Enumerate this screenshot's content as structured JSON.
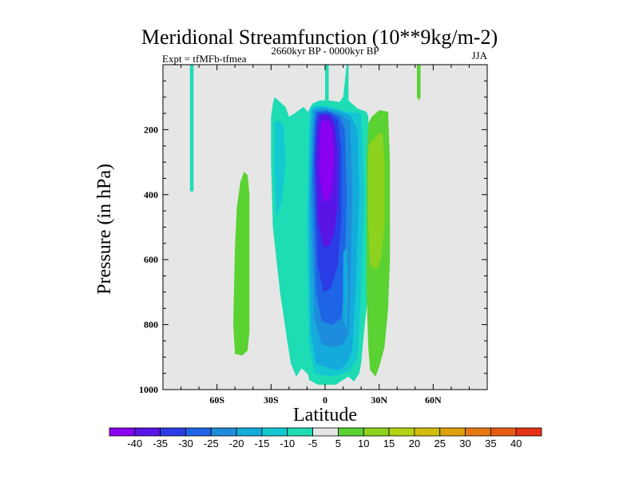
{
  "chart_data": {
    "type": "contour",
    "title": "Meridional Streamfunction (10**9kg/m-2)",
    "subtitle": "2660kyr BP - 0000kyr BP",
    "experiment_label": "Expt = tfMFb-tfmea",
    "season": "JJA",
    "xlabel": "Latitude",
    "ylabel": "Pressure (in hPa)",
    "xlim": [
      -90,
      90
    ],
    "ylim": [
      1000,
      0
    ],
    "x_ticks": [
      {
        "value": -60,
        "label": "60S"
      },
      {
        "value": -30,
        "label": "30S"
      },
      {
        "value": 0,
        "label": "0"
      },
      {
        "value": 30,
        "label": "30N"
      },
      {
        "value": 60,
        "label": "60N"
      }
    ],
    "y_ticks": [
      {
        "value": 200,
        "label": "200"
      },
      {
        "value": 400,
        "label": "400"
      },
      {
        "value": 600,
        "label": "600"
      },
      {
        "value": 800,
        "label": "800"
      },
      {
        "value": 1000,
        "label": "1000"
      }
    ],
    "background_color": "#e6e6e6",
    "colorbar": {
      "labels": [
        "-40",
        "-35",
        "-30",
        "-25",
        "-20",
        "-15",
        "-10",
        "-5",
        "5",
        "10",
        "15",
        "20",
        "25",
        "30",
        "35",
        "40"
      ],
      "colors": [
        "#8a00f0",
        "#5a14e6",
        "#2a3ce6",
        "#1e64e6",
        "#1e8cdc",
        "#14aadc",
        "#14c8d2",
        "#1edcb4",
        "#e6e6e6",
        "#5ad232",
        "#8cd21e",
        "#b4d214",
        "#d2be0a",
        "#dca00a",
        "#e67814",
        "#e65a14",
        "#e63214"
      ]
    },
    "regions": [
      {
        "value": -5,
        "color": "#1edcb4",
        "points": [
          [
            -75,
            0
          ],
          [
            -73,
            0
          ],
          [
            -73,
            390
          ],
          [
            -75,
            390
          ]
        ]
      },
      {
        "value": 5,
        "color": "#5ad232",
        "points": [
          [
            -50,
            560
          ],
          [
            -49,
            440
          ],
          [
            -47,
            360
          ],
          [
            -45,
            330
          ],
          [
            -43,
            340
          ],
          [
            -42,
            400
          ],
          [
            -42,
            820
          ],
          [
            -43,
            880
          ],
          [
            -46,
            895
          ],
          [
            -50,
            890
          ],
          [
            -51,
            800
          ]
        ]
      },
      {
        "value": -5,
        "color": "#1edcb4",
        "points": [
          [
            -29,
            120
          ],
          [
            -28,
            100
          ],
          [
            -26,
            110
          ],
          [
            -22,
            130
          ],
          [
            -20,
            160
          ],
          [
            -17,
            150
          ],
          [
            -12,
            130
          ],
          [
            -8,
            155
          ],
          [
            -7,
            400
          ],
          [
            -6,
            850
          ],
          [
            -6,
            950
          ],
          [
            -8,
            970
          ],
          [
            -10,
            950
          ],
          [
            -13,
            935
          ],
          [
            -16,
            960
          ],
          [
            -19,
            920
          ],
          [
            -21,
            850
          ],
          [
            -25,
            700
          ],
          [
            -29,
            500
          ],
          [
            -30,
            300
          ],
          [
            -30,
            160
          ]
        ]
      },
      {
        "value": -10,
        "color": "#14c8d2",
        "points": [
          [
            -28,
            180
          ],
          [
            -26,
            170
          ],
          [
            -23,
            190
          ],
          [
            -22,
            300
          ],
          [
            -24,
            420
          ],
          [
            -27,
            470
          ],
          [
            -28,
            350
          ]
        ]
      },
      {
        "value": -5,
        "color": "#1edcb4",
        "points": [
          [
            0,
            0
          ],
          [
            2,
            0
          ],
          [
            2,
            110
          ],
          [
            8,
            115
          ],
          [
            10,
            100
          ],
          [
            12,
            0
          ],
          [
            13,
            0
          ],
          [
            13,
            110
          ],
          [
            18,
            135
          ],
          [
            23,
            145
          ],
          [
            24,
            160
          ],
          [
            24,
            700
          ],
          [
            22,
            800
          ],
          [
            20,
            920
          ],
          [
            19,
            950
          ],
          [
            16,
            975
          ],
          [
            13,
            960
          ],
          [
            10,
            970
          ],
          [
            6,
            985
          ],
          [
            -4,
            985
          ],
          [
            -9,
            970
          ],
          [
            -10,
            900
          ],
          [
            -11,
            500
          ],
          [
            -10,
            150
          ],
          [
            -7,
            120
          ],
          [
            -3,
            110
          ],
          [
            0,
            110
          ]
        ]
      },
      {
        "value": -10,
        "color": "#14c8d2",
        "points": [
          [
            -8,
            130
          ],
          [
            -4,
            125
          ],
          [
            4,
            130
          ],
          [
            12,
            145
          ],
          [
            20,
            150
          ],
          [
            22,
            400
          ],
          [
            20,
            700
          ],
          [
            18,
            900
          ],
          [
            14,
            940
          ],
          [
            10,
            950
          ],
          [
            4,
            960
          ],
          [
            -6,
            950
          ],
          [
            -9,
            850
          ],
          [
            -10,
            500
          ],
          [
            -9,
            200
          ]
        ]
      },
      {
        "value": -15,
        "color": "#14aadc",
        "points": [
          [
            -7,
            135
          ],
          [
            -2,
            130
          ],
          [
            6,
            140
          ],
          [
            14,
            155
          ],
          [
            18,
            200
          ],
          [
            19,
            400
          ],
          [
            17,
            700
          ],
          [
            15,
            880
          ],
          [
            12,
            920
          ],
          [
            8,
            940
          ],
          [
            2,
            935
          ],
          [
            -5,
            920
          ],
          [
            -8,
            820
          ],
          [
            -9,
            450
          ],
          [
            -8,
            180
          ]
        ]
      },
      {
        "value": -20,
        "color": "#1e8cdc",
        "points": [
          [
            -6,
            140
          ],
          [
            0,
            137
          ],
          [
            8,
            150
          ],
          [
            14,
            175
          ],
          [
            15,
            400
          ],
          [
            14,
            700
          ],
          [
            13,
            830
          ],
          [
            10,
            860
          ],
          [
            4,
            870
          ],
          [
            -2,
            860
          ],
          [
            -6,
            780
          ],
          [
            -8,
            400
          ],
          [
            -7,
            200
          ]
        ]
      },
      {
        "value": -25,
        "color": "#1e64e6",
        "points": [
          [
            -5,
            145
          ],
          [
            1,
            142
          ],
          [
            8,
            160
          ],
          [
            11,
            200
          ],
          [
            12,
            400
          ],
          [
            11,
            650
          ],
          [
            9,
            780
          ],
          [
            4,
            800
          ],
          [
            -2,
            790
          ],
          [
            -5,
            700
          ],
          [
            -7,
            350
          ],
          [
            -6,
            190
          ]
        ]
      },
      {
        "value": -30,
        "color": "#2a3ce6",
        "points": [
          [
            -4,
            150
          ],
          [
            2,
            148
          ],
          [
            7,
            170
          ],
          [
            9,
            260
          ],
          [
            9,
            480
          ],
          [
            7,
            620
          ],
          [
            3,
            690
          ],
          [
            -1,
            700
          ],
          [
            -4,
            620
          ],
          [
            -6,
            300
          ],
          [
            -5,
            180
          ]
        ]
      },
      {
        "value": -35,
        "color": "#5a14e6",
        "points": [
          [
            -3,
            155
          ],
          [
            2,
            155
          ],
          [
            5,
            180
          ],
          [
            7,
            260
          ],
          [
            7,
            430
          ],
          [
            5,
            520
          ],
          [
            2,
            560
          ],
          [
            -1,
            560
          ],
          [
            -4,
            480
          ],
          [
            -5,
            300
          ],
          [
            -4,
            190
          ]
        ]
      },
      {
        "value": -40,
        "color": "#8a00f0",
        "points": [
          [
            -2,
            175
          ],
          [
            2,
            170
          ],
          [
            4,
            200
          ],
          [
            5,
            280
          ],
          [
            4,
            380
          ],
          [
            2,
            420
          ],
          [
            -1,
            420
          ],
          [
            -3,
            340
          ],
          [
            -3,
            220
          ]
        ]
      },
      {
        "value": -15,
        "color": "#14aadc",
        "points": [
          [
            10,
            580
          ],
          [
            12,
            560
          ],
          [
            13,
            700
          ],
          [
            12,
            820
          ],
          [
            10,
            780
          ]
        ]
      },
      {
        "value": 5,
        "color": "#5ad232",
        "points": [
          [
            24,
            180
          ],
          [
            26,
            160
          ],
          [
            30,
            140
          ],
          [
            35,
            145
          ],
          [
            36,
            300
          ],
          [
            36,
            600
          ],
          [
            35,
            750
          ],
          [
            33,
            870
          ],
          [
            30,
            930
          ],
          [
            28,
            960
          ],
          [
            25,
            940
          ],
          [
            24,
            870
          ],
          [
            23,
            700
          ],
          [
            23,
            300
          ]
        ]
      },
      {
        "value": 10,
        "color": "#8cd21e",
        "points": [
          [
            24,
            250
          ],
          [
            27,
            230
          ],
          [
            30,
            210
          ],
          [
            32,
            215
          ],
          [
            33,
            300
          ],
          [
            33,
            500
          ],
          [
            31,
            600
          ],
          [
            29,
            630
          ],
          [
            25,
            620
          ],
          [
            24,
            500
          ]
        ]
      },
      {
        "value": 5,
        "color": "#5ad232",
        "points": [
          [
            51,
            0
          ],
          [
            53,
            0
          ],
          [
            53,
            100
          ],
          [
            52,
            110
          ],
          [
            51,
            100
          ]
        ]
      }
    ]
  }
}
